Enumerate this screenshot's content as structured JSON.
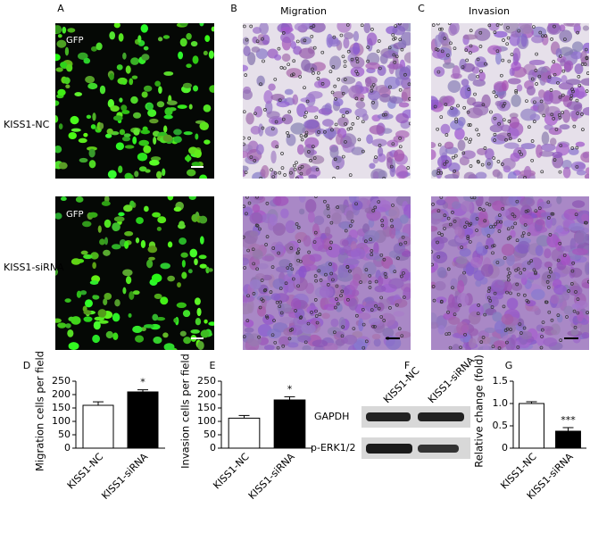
{
  "panels": {
    "labels": [
      "A",
      "B",
      "C",
      "D",
      "E",
      "F",
      "G"
    ],
    "column_titles": [
      "Migration",
      "Invasion"
    ],
    "row_labels": [
      "KISS1-NC",
      "KISS1-siRNA"
    ],
    "gfp_labels": [
      "GFP",
      "GFP"
    ]
  },
  "western_blot": {
    "lanes": [
      "KISS1-NC",
      "KISS1-siRNA"
    ],
    "bands": [
      "GAPDH",
      "p-ERK1/2"
    ]
  },
  "chart_data": [
    {
      "type": "bar",
      "ylabel": "Migration cells per field",
      "categories": [
        "KISS1-NC",
        "KISS1-siRNA"
      ],
      "values": [
        160,
        210
      ],
      "errors": [
        13,
        8
      ],
      "colors": [
        "#ffffff",
        "#000000"
      ],
      "significance": [
        null,
        "*"
      ],
      "ylim": [
        0,
        250
      ],
      "yticks": [
        0,
        50,
        100,
        150,
        200,
        250
      ]
    },
    {
      "type": "bar",
      "ylabel": "Invasion cells per field",
      "categories": [
        "KISS1-NC",
        "KISS1-siRNA"
      ],
      "values": [
        112,
        180
      ],
      "errors": [
        10,
        12
      ],
      "colors": [
        "#ffffff",
        "#000000"
      ],
      "significance": [
        null,
        "*"
      ],
      "ylim": [
        0,
        250
      ],
      "yticks": [
        0,
        50,
        100,
        150,
        200,
        250
      ]
    },
    {
      "type": "bar",
      "ylabel": "Relative change (fold)",
      "categories": [
        "KISS1-NC",
        "KISS1-siRNA"
      ],
      "values": [
        1.0,
        0.38
      ],
      "errors": [
        0.04,
        0.08
      ],
      "colors": [
        "#ffffff",
        "#000000"
      ],
      "significance": [
        null,
        "***"
      ],
      "ylim": [
        0,
        1.5
      ],
      "yticks": [
        0,
        {
          "value": 0.5,
          "label": "0.5"
        },
        {
          "value": 1.0,
          "label": "1.0"
        },
        {
          "value": 1.5,
          "label": "1.5"
        }
      ]
    }
  ]
}
